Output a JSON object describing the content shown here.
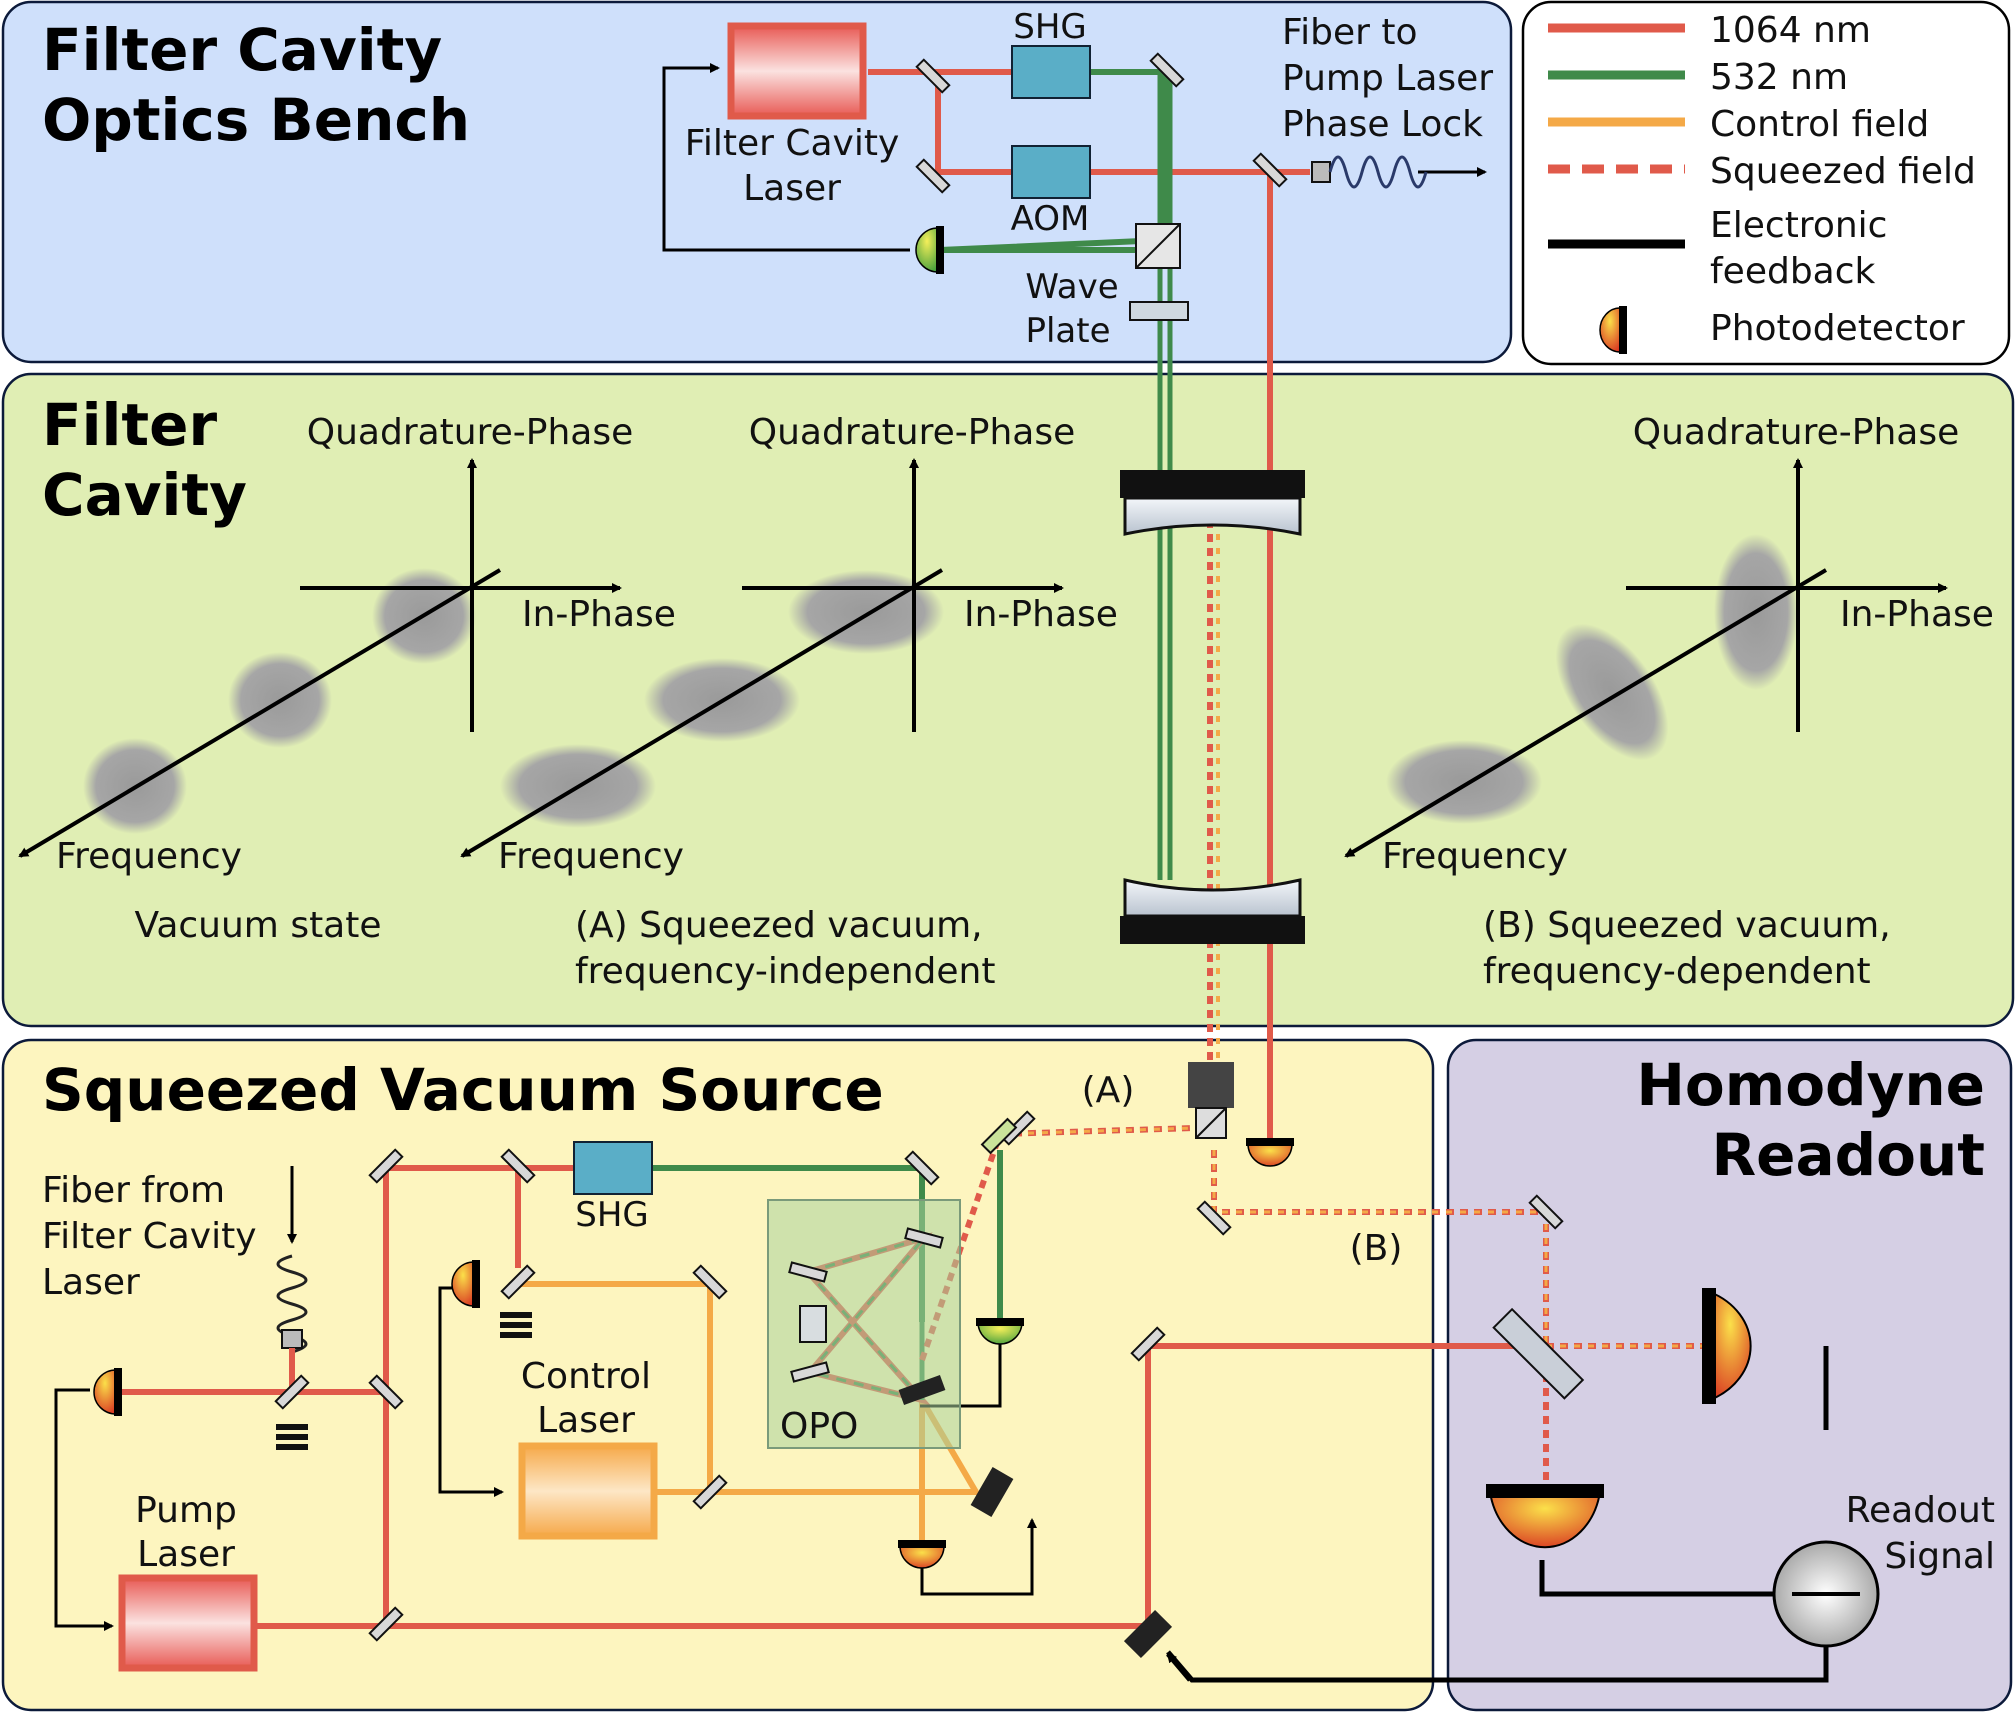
{
  "panels": {
    "bench_title": [
      "Filter Cavity",
      "Optics Bench"
    ],
    "cavity_title": [
      "Filter",
      "Cavity"
    ],
    "source_title": "Squeezed Vacuum Source",
    "homodyne_title": [
      "Homodyne",
      "Readout"
    ]
  },
  "legend": {
    "items": [
      {
        "label": "1064 nm",
        "color": "#e05a4a",
        "style": "solid"
      },
      {
        "label": "532 nm",
        "color": "#3f8a4a",
        "style": "solid"
      },
      {
        "label": "Control field",
        "color": "#f4a947",
        "style": "solid"
      },
      {
        "label": "Squeezed field",
        "color": "#e05a4a",
        "style": "dashed"
      },
      {
        "label": "Electronic",
        "label2": "feedback",
        "color": "#000000",
        "style": "solid"
      },
      {
        "label": "Photodetector",
        "icon": "photodetector-icon"
      }
    ]
  },
  "bench": {
    "laser_label": [
      "Filter Cavity",
      "Laser"
    ],
    "shg": "SHG",
    "aom": "AOM",
    "fiber_label": [
      "Fiber to",
      "Pump Laser",
      "Phase Lock"
    ],
    "waveplate_label": [
      "Wave",
      "Plate"
    ]
  },
  "cavity": {
    "axes_quadrature": "Quadrature-Phase",
    "axes_inphase": "In-Phase",
    "axes_frequency": "Frequency",
    "captions": {
      "vacuum": [
        "Vacuum state"
      ],
      "a": [
        "(A) Squeezed vacuum,",
        "frequency-independent"
      ],
      "b": [
        "(B) Squeezed vacuum,",
        "frequency-dependent"
      ]
    }
  },
  "source": {
    "fiber_label": [
      "Fiber from",
      "Filter Cavity",
      "Laser"
    ],
    "shg": "SHG",
    "control_laser": [
      "Control",
      "Laser"
    ],
    "pump_laser": [
      "Pump",
      "Laser"
    ],
    "opo": "OPO",
    "path_a": "(A)",
    "path_b": "(B)"
  },
  "homodyne": {
    "readout_signal": [
      "Readout",
      "Signal"
    ]
  },
  "colors": {
    "bench_bg": "#cfe0fb",
    "cavity_bg": "#e0eeb4",
    "source_bg": "#fdf5bf",
    "homodyne_bg": "#d5cfe4",
    "red": "#e05a4a",
    "green": "#3f8a4a",
    "orange": "#f4a947",
    "teal": "#5aaec7"
  }
}
